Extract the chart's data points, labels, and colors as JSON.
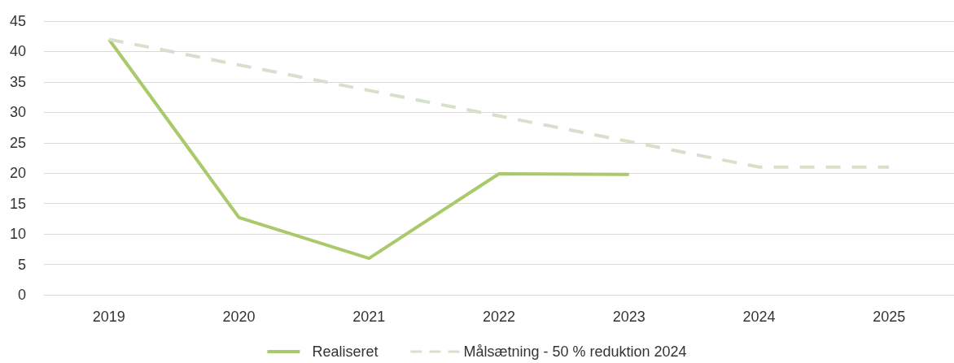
{
  "chart_data": {
    "type": "line",
    "categories": [
      "2019",
      "2020",
      "2021",
      "2022",
      "2023",
      "2024",
      "2025"
    ],
    "series": [
      {
        "name": "Realiseret",
        "color": "#a9c96b",
        "line_style": "solid",
        "values": [
          42,
          12.7,
          6,
          19.9,
          19.8,
          null,
          null
        ]
      },
      {
        "name": "Målsætning - 50 % reduktion 2024",
        "color": "#d7e0cb",
        "line_style": "dashed",
        "values": [
          42,
          37.8,
          33.6,
          29.4,
          25.2,
          21,
          21
        ]
      }
    ],
    "ylim": [
      0,
      45
    ],
    "yticks": [
      0,
      5,
      10,
      15,
      20,
      25,
      30,
      35,
      40,
      45
    ],
    "grid": "y",
    "legend": "bottom",
    "marker": "none"
  }
}
